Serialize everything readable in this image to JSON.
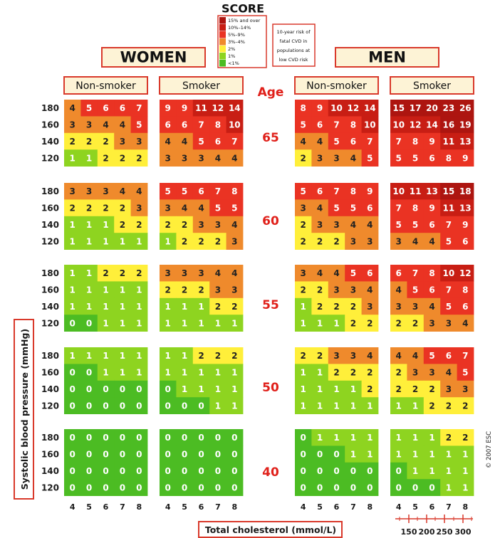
{
  "chart_data": {
    "type": "heatmap",
    "title": "SCORE",
    "legend": [
      {
        "label": "15% and over",
        "color": "#ad1510"
      },
      {
        "label": "10%–14%",
        "color": "#c81e14"
      },
      {
        "label": "5%–9%",
        "color": "#ea3323"
      },
      {
        "label": "3%–4%",
        "color": "#ef8a2c"
      },
      {
        "label": "2%",
        "color": "#ffef3a"
      },
      {
        "label": "1%",
        "color": "#8ed420"
      },
      {
        "label": "<1%",
        "color": "#4cbc23"
      }
    ],
    "note_lines": [
      "10-year risk of",
      "fatal CVD in",
      "populations at",
      "low CVD risk"
    ],
    "genders": [
      "WOMEN",
      "MEN"
    ],
    "groups": [
      "Non-smoker",
      "Smoker",
      "Non-smoker",
      "Smoker"
    ],
    "age_header": "Age",
    "ages": [
      "65",
      "60",
      "55",
      "50",
      "40"
    ],
    "bp_values": [
      "180",
      "160",
      "140",
      "120"
    ],
    "cholesterol_values": [
      "4",
      "5",
      "6",
      "7",
      "8"
    ],
    "mg_values": [
      "150",
      "200",
      "250",
      "300"
    ],
    "xlabel": "Total cholesterol (mmol/L)",
    "ylabel": "Systolic blood pressure (mmHg)",
    "copyright": "© 2007 ESC",
    "cells": {
      "65": [
        [
          [
            4,
            5,
            6,
            6,
            7
          ],
          [
            3,
            3,
            4,
            4,
            5
          ],
          [
            2,
            2,
            2,
            3,
            3
          ],
          [
            1,
            1,
            2,
            2,
            2
          ]
        ],
        [
          [
            9,
            9,
            11,
            12,
            14
          ],
          [
            6,
            6,
            7,
            8,
            10
          ],
          [
            4,
            4,
            5,
            6,
            7
          ],
          [
            3,
            3,
            3,
            4,
            4
          ]
        ],
        [
          [
            8,
            9,
            10,
            12,
            14
          ],
          [
            5,
            6,
            7,
            8,
            10
          ],
          [
            4,
            4,
            5,
            6,
            7
          ],
          [
            2,
            3,
            3,
            4,
            5
          ]
        ],
        [
          [
            15,
            17,
            20,
            23,
            26
          ],
          [
            10,
            12,
            14,
            16,
            19
          ],
          [
            7,
            8,
            9,
            11,
            13
          ],
          [
            5,
            5,
            6,
            8,
            9
          ]
        ]
      ],
      "60": [
        [
          [
            3,
            3,
            3,
            4,
            4
          ],
          [
            2,
            2,
            2,
            2,
            3
          ],
          [
            1,
            1,
            1,
            2,
            2
          ],
          [
            1,
            1,
            1,
            1,
            1
          ]
        ],
        [
          [
            5,
            5,
            6,
            7,
            8
          ],
          [
            3,
            4,
            4,
            5,
            5
          ],
          [
            2,
            2,
            3,
            3,
            4
          ],
          [
            1,
            2,
            2,
            2,
            3
          ]
        ],
        [
          [
            5,
            6,
            7,
            8,
            9
          ],
          [
            3,
            4,
            5,
            5,
            6
          ],
          [
            2,
            3,
            3,
            4,
            4
          ],
          [
            2,
            2,
            2,
            3,
            3
          ]
        ],
        [
          [
            10,
            11,
            13,
            15,
            18
          ],
          [
            7,
            8,
            9,
            11,
            13
          ],
          [
            5,
            5,
            6,
            7,
            9
          ],
          [
            3,
            4,
            4,
            5,
            6
          ]
        ]
      ],
      "55": [
        [
          [
            1,
            1,
            2,
            2,
            2
          ],
          [
            1,
            1,
            1,
            1,
            1
          ],
          [
            1,
            1,
            1,
            1,
            1
          ],
          [
            0,
            0,
            1,
            1,
            1
          ]
        ],
        [
          [
            3,
            3,
            3,
            4,
            4
          ],
          [
            2,
            2,
            2,
            3,
            3
          ],
          [
            1,
            1,
            1,
            2,
            2
          ],
          [
            1,
            1,
            1,
            1,
            1
          ]
        ],
        [
          [
            3,
            4,
            4,
            5,
            6
          ],
          [
            2,
            2,
            3,
            3,
            4
          ],
          [
            1,
            2,
            2,
            2,
            3
          ],
          [
            1,
            1,
            1,
            2,
            2
          ]
        ],
        [
          [
            6,
            7,
            8,
            10,
            12
          ],
          [
            4,
            5,
            6,
            7,
            8
          ],
          [
            3,
            3,
            4,
            5,
            6
          ],
          [
            2,
            2,
            3,
            3,
            4
          ]
        ]
      ],
      "50": [
        [
          [
            1,
            1,
            1,
            1,
            1
          ],
          [
            0,
            0,
            1,
            1,
            1
          ],
          [
            0,
            0,
            0,
            0,
            0
          ],
          [
            0,
            0,
            0,
            0,
            0
          ]
        ],
        [
          [
            1,
            1,
            2,
            2,
            2
          ],
          [
            1,
            1,
            1,
            1,
            1
          ],
          [
            0,
            1,
            1,
            1,
            1
          ],
          [
            0,
            0,
            0,
            1,
            1
          ]
        ],
        [
          [
            2,
            2,
            3,
            3,
            4
          ],
          [
            1,
            1,
            2,
            2,
            2
          ],
          [
            1,
            1,
            1,
            1,
            2
          ],
          [
            1,
            1,
            1,
            1,
            1
          ]
        ],
        [
          [
            4,
            4,
            5,
            6,
            7
          ],
          [
            2,
            3,
            3,
            4,
            5
          ],
          [
            2,
            2,
            2,
            3,
            3
          ],
          [
            1,
            1,
            2,
            2,
            2
          ]
        ]
      ],
      "40": [
        [
          [
            0,
            0,
            0,
            0,
            0
          ],
          [
            0,
            0,
            0,
            0,
            0
          ],
          [
            0,
            0,
            0,
            0,
            0
          ],
          [
            0,
            0,
            0,
            0,
            0
          ]
        ],
        [
          [
            0,
            0,
            0,
            0,
            0
          ],
          [
            0,
            0,
            0,
            0,
            0
          ],
          [
            0,
            0,
            0,
            0,
            0
          ],
          [
            0,
            0,
            0,
            0,
            0
          ]
        ],
        [
          [
            0,
            1,
            1,
            1,
            1
          ],
          [
            0,
            0,
            0,
            1,
            1
          ],
          [
            0,
            0,
            0,
            0,
            0
          ],
          [
            0,
            0,
            0,
            0,
            0
          ]
        ],
        [
          [
            1,
            1,
            1,
            2,
            2
          ],
          [
            1,
            1,
            1,
            1,
            1
          ],
          [
            0,
            1,
            1,
            1,
            1
          ],
          [
            0,
            0,
            0,
            1,
            1
          ]
        ]
      ]
    }
  }
}
